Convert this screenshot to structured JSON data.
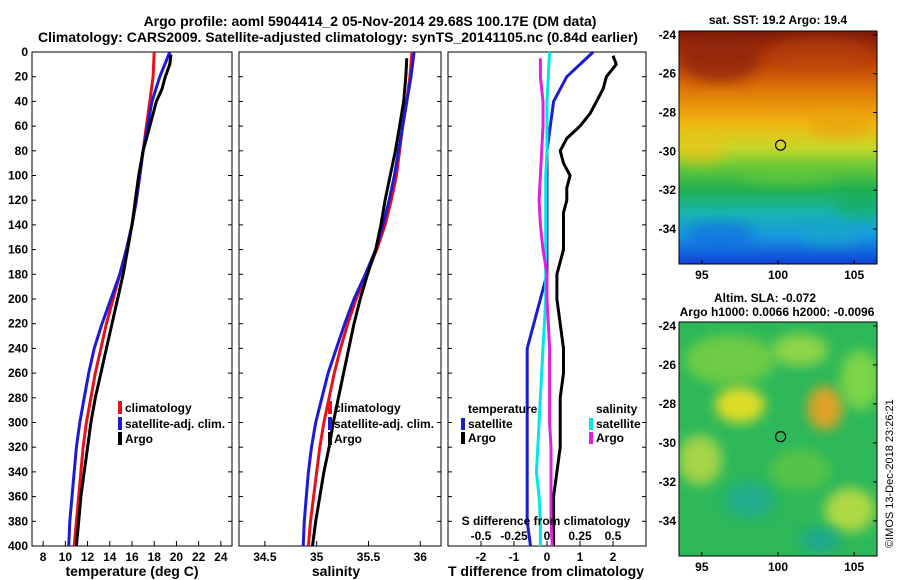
{
  "title_line1": "Argo profile: aoml 5904414_2 05-Nov-2014 29.68S 100.17E (DM data)",
  "title_line2": "Climatology: CARS2009. Satellite-adjusted climatology: synTS_20141105.nc (0.84d earlier)",
  "credit": "©IMOS 13-Dec-2018 23:26:21",
  "colors": {
    "climatology": "#e8101a",
    "satellite_adj": "#1b1bd6",
    "argo": "#000000",
    "satellite_s": "#00e6e6",
    "argo_s": "#e020e0"
  },
  "chart_data": [
    {
      "type": "line",
      "id": "temperature",
      "xlabel": "temperature (deg C)",
      "xlim": [
        7,
        25
      ],
      "ylim": [
        0,
        400
      ],
      "xticks": [
        "8",
        "10",
        "12",
        "14",
        "16",
        "18",
        "20",
        "22",
        "24"
      ],
      "yticks": [
        "0",
        "20",
        "40",
        "60",
        "80",
        "100",
        "120",
        "140",
        "160",
        "180",
        "200",
        "220",
        "240",
        "260",
        "280",
        "300",
        "320",
        "340",
        "360",
        "380",
        "400"
      ],
      "legend": [
        "climatology",
        "satellite-adj. clim.",
        "Argo"
      ],
      "series": [
        {
          "name": "climatology",
          "depth": [
            0,
            20,
            40,
            60,
            80,
            100,
            120,
            140,
            160,
            180,
            200,
            220,
            240,
            260,
            280,
            300,
            320,
            340,
            360,
            380,
            400
          ],
          "values": [
            18.0,
            17.9,
            17.6,
            17.3,
            17.0,
            16.7,
            16.4,
            16.0,
            15.5,
            14.9,
            14.3,
            13.7,
            13.2,
            12.7,
            12.3,
            11.9,
            11.6,
            11.4,
            11.2,
            11.0,
            10.8
          ]
        },
        {
          "name": "satellite-adj. clim.",
          "depth": [
            0,
            20,
            40,
            60,
            80,
            100,
            120,
            140,
            160,
            180,
            200,
            220,
            240,
            260,
            280,
            300,
            320,
            340,
            360,
            380,
            400
          ],
          "values": [
            19.4,
            18.5,
            17.8,
            17.4,
            17.0,
            16.7,
            16.4,
            16.0,
            15.5,
            14.9,
            14.1,
            13.3,
            12.6,
            12.1,
            11.7,
            11.3,
            11.0,
            10.8,
            10.6,
            10.4,
            10.3
          ]
        },
        {
          "name": "Argo",
          "depth": [
            2,
            10,
            20,
            30,
            40,
            60,
            80,
            100,
            120,
            140,
            160,
            180,
            200,
            220,
            240,
            260,
            280,
            300,
            320,
            340,
            360,
            380,
            400
          ],
          "values": [
            19.5,
            19.4,
            19.0,
            18.7,
            18.2,
            17.6,
            17.0,
            16.6,
            16.3,
            16.0,
            15.6,
            15.2,
            14.7,
            14.2,
            13.7,
            13.2,
            12.7,
            12.3,
            12.0,
            11.7,
            11.4,
            11.2,
            11.0
          ]
        }
      ]
    },
    {
      "type": "line",
      "id": "salinity",
      "xlabel": "salinity",
      "xlim": [
        34.25,
        36.2
      ],
      "ylim": [
        0,
        400
      ],
      "xticks": [
        "34.5",
        "35",
        "35.5",
        "36"
      ],
      "legend": [
        "climatology",
        "satellite-adj. clim.",
        "Argo"
      ],
      "series": [
        {
          "name": "climatology",
          "depth": [
            0,
            20,
            40,
            60,
            80,
            100,
            120,
            140,
            160,
            180,
            200,
            220,
            240,
            260,
            280,
            300,
            320,
            340,
            360,
            380,
            400
          ],
          "values": [
            35.92,
            35.9,
            35.87,
            35.83,
            35.8,
            35.77,
            35.72,
            35.66,
            35.58,
            35.48,
            35.38,
            35.3,
            35.23,
            35.17,
            35.12,
            35.07,
            35.03,
            35.0,
            34.97,
            34.94,
            34.92
          ]
        },
        {
          "name": "satellite-adj. clim.",
          "depth": [
            0,
            20,
            40,
            60,
            80,
            100,
            120,
            140,
            160,
            180,
            200,
            220,
            240,
            260,
            280,
            300,
            320,
            340,
            360,
            380,
            400
          ],
          "values": [
            35.94,
            35.91,
            35.87,
            35.83,
            35.79,
            35.75,
            35.7,
            35.64,
            35.57,
            35.47,
            35.36,
            35.27,
            35.19,
            35.11,
            35.05,
            34.99,
            34.95,
            34.92,
            34.9,
            34.88,
            34.87
          ]
        },
        {
          "name": "Argo",
          "depth": [
            5,
            20,
            40,
            60,
            80,
            100,
            120,
            140,
            160,
            180,
            200,
            220,
            240,
            260,
            280,
            300,
            320,
            340,
            360,
            380,
            400
          ],
          "values": [
            35.87,
            35.86,
            35.84,
            35.8,
            35.76,
            35.71,
            35.66,
            35.62,
            35.57,
            35.49,
            35.42,
            35.36,
            35.31,
            35.26,
            35.21,
            35.16,
            35.12,
            35.07,
            35.03,
            34.99,
            34.96
          ]
        }
      ]
    },
    {
      "type": "line",
      "id": "differences",
      "xlabel": "T difference from climatology",
      "xlabel_top": "S difference from climatology",
      "xlim": [
        -3,
        3
      ],
      "ylim": [
        0,
        400
      ],
      "xticks": [
        "-2",
        "-1",
        "0",
        "1",
        "2"
      ],
      "xticks_top": [
        "-0.5",
        "-0.25",
        "0",
        "0.25",
        "0.5"
      ],
      "legend_left_title": "temperature",
      "legend_right_title": "salinity",
      "legend_left": [
        "satellite",
        "Argo"
      ],
      "legend_right": [
        "satellite",
        "Argo"
      ],
      "series": [
        {
          "name": "temperature satellite",
          "depth": [
            0,
            20,
            40,
            60,
            80,
            100,
            120,
            140,
            160,
            180,
            200,
            220,
            240,
            260,
            280,
            300,
            320,
            340,
            360,
            380,
            400
          ],
          "values": [
            1.4,
            0.6,
            0.2,
            0.1,
            0.0,
            0.0,
            0.0,
            0.0,
            0.0,
            0.0,
            -0.2,
            -0.4,
            -0.6,
            -0.6,
            -0.6,
            -0.6,
            -0.6,
            -0.6,
            -0.6,
            -0.6,
            -0.5
          ]
        },
        {
          "name": "temperature Argo",
          "depth": [
            3,
            10,
            20,
            30,
            40,
            50,
            60,
            70,
            80,
            90,
            100,
            110,
            120,
            130,
            140,
            160,
            180,
            200,
            220,
            240,
            260,
            280,
            300,
            320,
            340,
            360,
            380,
            400
          ],
          "values": [
            2.0,
            2.1,
            1.8,
            1.7,
            1.5,
            1.3,
            1.0,
            0.6,
            0.4,
            0.5,
            0.7,
            0.6,
            0.6,
            0.5,
            0.5,
            0.5,
            0.3,
            0.3,
            0.4,
            0.5,
            0.5,
            0.4,
            0.4,
            0.4,
            0.3,
            0.2,
            0.2,
            0.2
          ]
        },
        {
          "name": "salinity satellite",
          "depth": [
            0,
            20,
            40,
            60,
            80,
            100,
            120,
            140,
            160,
            180,
            200,
            220,
            240,
            260,
            280,
            300,
            320,
            340,
            360,
            380,
            400
          ],
          "values": [
            0.02,
            0.01,
            0.0,
            0.0,
            0.0,
            -0.01,
            -0.01,
            -0.01,
            -0.01,
            -0.01,
            -0.01,
            -0.02,
            -0.03,
            -0.04,
            -0.05,
            -0.06,
            -0.07,
            -0.08,
            -0.06,
            -0.05,
            -0.05
          ]
        },
        {
          "name": "salinity Argo",
          "depth": [
            5,
            20,
            40,
            60,
            80,
            100,
            120,
            140,
            160,
            180,
            200,
            220,
            240,
            260,
            280,
            300,
            320,
            340,
            360,
            380,
            400
          ],
          "values": [
            -0.05,
            -0.05,
            -0.03,
            -0.03,
            -0.04,
            -0.05,
            -0.06,
            -0.05,
            -0.03,
            0.0,
            0.0,
            0.01,
            0.02,
            0.02,
            0.02,
            0.02,
            0.03,
            0.03,
            0.03,
            0.03,
            0.04
          ]
        }
      ]
    }
  ],
  "maps": [
    {
      "id": "sst-map",
      "title": "sat. SST: 19.2 Argo: 19.4",
      "xticks": [
        "95",
        "100",
        "105"
      ],
      "yticks": [
        "-24",
        "-26",
        "-28",
        "-30",
        "-32",
        "-34"
      ],
      "xlim": [
        93.5,
        106.5
      ],
      "ylim": [
        -35.8,
        -23.8
      ],
      "marker": [
        100.17,
        -29.68
      ]
    },
    {
      "id": "sla-map",
      "title_line1": "Altim. SLA: -0.072",
      "title_line2": "Argo h1000: 0.0066 h2000: -0.0096",
      "xticks": [
        "95",
        "100",
        "105"
      ],
      "yticks": [
        "-24",
        "-26",
        "-28",
        "-30",
        "-32",
        "-34"
      ],
      "xlim": [
        93.5,
        106.5
      ],
      "ylim": [
        -35.8,
        -23.8
      ],
      "marker": [
        100.17,
        -29.68
      ]
    }
  ]
}
